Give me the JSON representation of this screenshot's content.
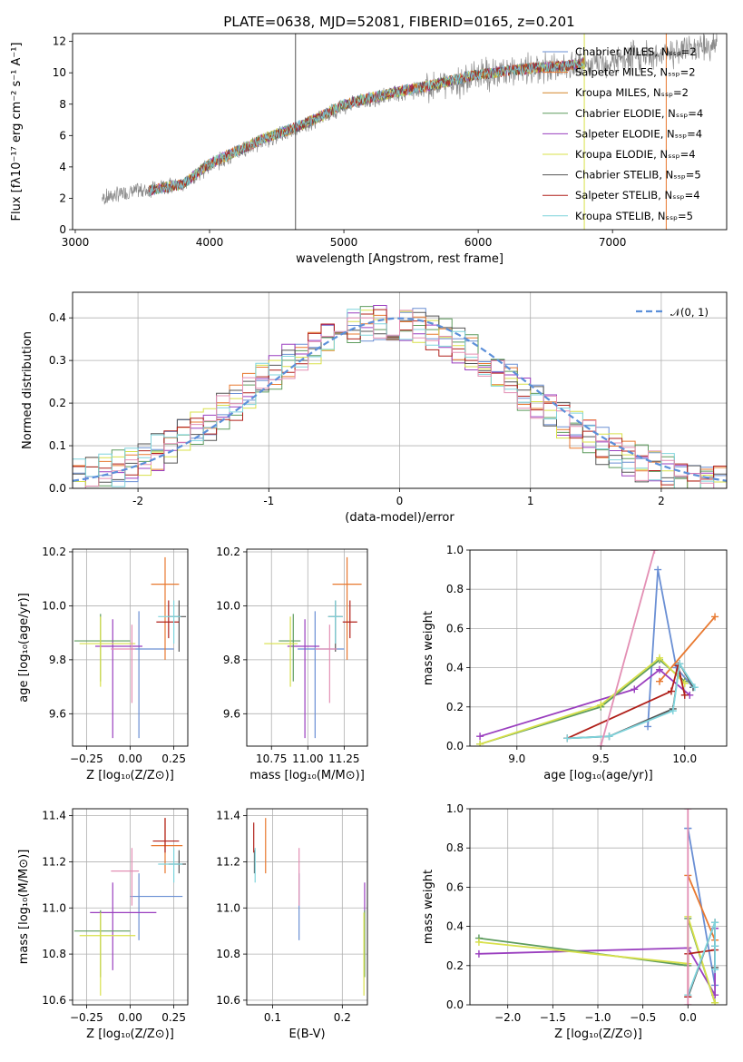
{
  "title": "PLATE=0638, MJD=52081, FIBERID=0165, z=0.201",
  "chart_data": [
    {
      "id": "spectrum",
      "type": "line",
      "xlabel": "wavelength [Angstrom, rest frame]",
      "ylabel": "Flux [fλ10⁻¹⁷ erg cm⁻² s⁻¹ A⁻¹]",
      "xlim": [
        2980,
        7850
      ],
      "ylim": [
        0,
        12.5
      ],
      "xticks": [
        3000,
        4000,
        5000,
        6000,
        7000
      ],
      "yticks": [
        0,
        2,
        4,
        6,
        8,
        10,
        12
      ],
      "legend_position": "top-right",
      "legend": [
        {
          "name": "Chabrier MILES, Nₛₛₚ=2",
          "color": "#6a8fd4"
        },
        {
          "name": "Salpeter MILES, Nₛₛₚ=2",
          "color": "#e8782f"
        },
        {
          "name": "Kroupa MILES, Nₛₛₚ=2",
          "color": "#d4862a"
        },
        {
          "name": "Chabrier ELODIE, Nₛₛₚ=4",
          "color": "#5e9c5e"
        },
        {
          "name": "Salpeter ELODIE, Nₛₛₚ=4",
          "color": "#9a3fbf"
        },
        {
          "name": "Kroupa ELODIE, Nₛₛₚ=4",
          "color": "#d8e04a"
        },
        {
          "name": "Chabrier STELIB, Nₛₛₚ=5",
          "color": "#555555"
        },
        {
          "name": "Salpeter STELIB, Nₛₛₚ=4",
          "color": "#b0201a"
        },
        {
          "name": "Kroupa STELIB, Nₛₛₚ=5",
          "color": "#7fd4dc"
        }
      ],
      "observed": {
        "x": [
          3200,
          3400,
          3600,
          3800,
          4000,
          4200,
          4400,
          4600,
          4800,
          5000,
          5200,
          5400,
          5600,
          5800,
          6000,
          6200,
          6400,
          6600,
          6800,
          7000,
          7200,
          7400,
          7600,
          7800
        ],
        "y": [
          2.0,
          2.4,
          2.6,
          2.9,
          4.1,
          4.9,
          5.7,
          6.3,
          7.0,
          7.9,
          8.3,
          8.7,
          9.0,
          9.4,
          9.8,
          10.0,
          10.2,
          10.3,
          10.5,
          10.7,
          11.0,
          11.3,
          11.6,
          11.8
        ]
      },
      "model": {
        "x": [
          3550,
          3800,
          4000,
          4200,
          4400,
          4600,
          4800,
          5000,
          5200,
          5400,
          5600,
          5800,
          6000,
          6200,
          6400,
          6600,
          6800
        ],
        "y": [
          2.5,
          2.9,
          4.2,
          5.0,
          5.8,
          6.4,
          7.1,
          8.0,
          8.4,
          8.8,
          9.1,
          9.5,
          9.9,
          10.1,
          10.3,
          10.4,
          10.6
        ]
      }
    },
    {
      "id": "residuals",
      "type": "line",
      "xlabel": "(data-model)/error",
      "ylabel": "Normed distribution",
      "xlim": [
        -2.5,
        2.5
      ],
      "ylim": [
        0,
        0.46
      ],
      "xticks": [
        -2,
        -1,
        0,
        1,
        2
      ],
      "yticks": [
        0.0,
        0.1,
        0.2,
        0.3,
        0.4
      ],
      "legend_position": "top-right",
      "gaussian_label": "𝒩(0, 1)",
      "gaussian_color": "#5b8fd9",
      "step_colors": [
        "#6a8fd4",
        "#e8782f",
        "#5e9c5e",
        "#9a3fbf",
        "#d8e04a",
        "#555555",
        "#b0201a",
        "#7fd4dc",
        "#e38fb4"
      ]
    },
    {
      "id": "z-age",
      "type": "scatter",
      "xlabel": "Z [log₁₀(Z/Z⊙)]",
      "ylabel": "age  [log₁₀(age/yr)]",
      "xlim": [
        -0.33,
        0.33
      ],
      "ylim": [
        9.48,
        10.21
      ],
      "xticks": [
        -0.25,
        0.0,
        0.25
      ],
      "xtick_labels": [
        "−0.25",
        "0.00",
        "0.25"
      ],
      "yticks": [
        9.6,
        9.8,
        10.0,
        10.2
      ],
      "points": [
        {
          "color": "#6a8fd4",
          "x": 0.05,
          "xerr": [
            0.05,
            0.2
          ],
          "y": 9.84,
          "yerr": [
            0.33,
            0.14
          ]
        },
        {
          "color": "#e8782f",
          "x": 0.2,
          "xerr": [
            0.08,
            0.08
          ],
          "y": 10.08,
          "yerr": [
            0.28,
            0.1
          ]
        },
        {
          "color": "#9a3fbf",
          "x": -0.1,
          "xerr": [
            0.1,
            0.17
          ],
          "y": 9.85,
          "yerr": [
            0.34,
            0.1
          ]
        },
        {
          "color": "#5e9c5e",
          "x": -0.17,
          "xerr": [
            0.15,
            0.17
          ],
          "y": 9.87,
          "yerr": [
            0.15,
            0.1
          ]
        },
        {
          "color": "#d8e04a",
          "x": -0.17,
          "xerr": [
            0.12,
            0.2
          ],
          "y": 9.86,
          "yerr": [
            0.16,
            0.1
          ]
        },
        {
          "color": "#555555",
          "x": 0.28,
          "xerr": [
            0.06,
            0.04
          ],
          "y": 9.96,
          "yerr": [
            0.13,
            0.06
          ]
        },
        {
          "color": "#b0201a",
          "x": 0.22,
          "xerr": [
            0.07,
            0.06
          ],
          "y": 9.94,
          "yerr": [
            0.06,
            0.08
          ]
        },
        {
          "color": "#7fd4dc",
          "x": 0.25,
          "xerr": [
            0.09,
            0.04
          ],
          "y": 9.96,
          "yerr": [
            0.1,
            0.06
          ]
        },
        {
          "color": "#e38fb4",
          "x": 0.01,
          "xerr": [
            0.12,
            0.02
          ],
          "y": 9.84,
          "yerr": [
            0.2,
            0.09
          ]
        }
      ]
    },
    {
      "id": "mass-age",
      "type": "scatter",
      "xlabel": "mass [log₁₀(M/M⊙)]",
      "ylabel": "",
      "xlim": [
        10.58,
        11.41
      ],
      "ylim": [
        9.48,
        10.21
      ],
      "xticks": [
        10.75,
        11.0,
        11.25
      ],
      "xtick_labels": [
        "10.75",
        "11.00",
        "11.25"
      ],
      "yticks": [
        9.6,
        9.8,
        10.0,
        10.2
      ],
      "points": [
        {
          "color": "#6a8fd4",
          "x": 11.05,
          "xerr": [
            0.12,
            0.2
          ],
          "y": 9.84,
          "yerr": [
            0.33,
            0.14
          ]
        },
        {
          "color": "#e8782f",
          "x": 11.27,
          "xerr": [
            0.1,
            0.1
          ],
          "y": 10.08,
          "yerr": [
            0.28,
            0.1
          ]
        },
        {
          "color": "#9a3fbf",
          "x": 10.98,
          "xerr": [
            0.12,
            0.1
          ],
          "y": 9.85,
          "yerr": [
            0.34,
            0.1
          ]
        },
        {
          "color": "#5e9c5e",
          "x": 10.9,
          "xerr": [
            0.1,
            0.05
          ],
          "y": 9.87,
          "yerr": [
            0.15,
            0.1
          ]
        },
        {
          "color": "#d8e04a",
          "x": 10.88,
          "xerr": [
            0.18,
            0.05
          ],
          "y": 9.86,
          "yerr": [
            0.16,
            0.1
          ]
        },
        {
          "color": "#555555",
          "x": 11.19,
          "xerr": [
            0.05,
            0.05
          ],
          "y": 9.96,
          "yerr": [
            0.13,
            0.06
          ]
        },
        {
          "color": "#b0201a",
          "x": 11.29,
          "xerr": [
            0.05,
            0.05
          ],
          "y": 9.94,
          "yerr": [
            0.06,
            0.08
          ]
        },
        {
          "color": "#7fd4dc",
          "x": 11.19,
          "xerr": [
            0.05,
            0.05
          ],
          "y": 9.96,
          "yerr": [
            0.1,
            0.06
          ]
        },
        {
          "color": "#e38fb4",
          "x": 11.15,
          "xerr": [
            0.1,
            0.05
          ],
          "y": 9.84,
          "yerr": [
            0.2,
            0.09
          ]
        }
      ]
    },
    {
      "id": "age-weight",
      "type": "line",
      "xlabel": "age  [log₁₀(age/yr)]",
      "ylabel": "mass weight",
      "xlim": [
        8.72,
        10.25
      ],
      "ylim": [
        0,
        1.0
      ],
      "xticks": [
        9.0,
        9.5,
        10.0
      ],
      "xtick_labels": [
        "9.0",
        "9.5",
        "10.0"
      ],
      "yticks": [
        0.0,
        0.2,
        0.4,
        0.6,
        0.8,
        1.0
      ],
      "series": [
        {
          "color": "#6a8fd4",
          "x": [
            9.78,
            9.84,
            9.95,
            10.05
          ],
          "y": [
            0.1,
            0.9,
            0.4,
            0.3
          ]
        },
        {
          "color": "#e8782f",
          "x": [
            9.85,
            10.18
          ],
          "y": [
            0.33,
            0.66
          ]
        },
        {
          "color": "#9a3fbf",
          "x": [
            8.78,
            9.7,
            9.85,
            10.03
          ],
          "y": [
            0.05,
            0.29,
            0.39,
            0.26
          ]
        },
        {
          "color": "#5e9c5e",
          "x": [
            8.78,
            9.5,
            9.85,
            10.0
          ],
          "y": [
            0.01,
            0.2,
            0.44,
            0.33
          ]
        },
        {
          "color": "#d8e04a",
          "x": [
            8.78,
            9.5,
            9.85,
            10.0
          ],
          "y": [
            0.01,
            0.21,
            0.45,
            0.32
          ]
        },
        {
          "color": "#555555",
          "x": [
            9.3,
            9.55,
            9.93,
            9.97,
            10.05
          ],
          "y": [
            0.04,
            0.05,
            0.19,
            0.42,
            0.3
          ]
        },
        {
          "color": "#b0201a",
          "x": [
            9.3,
            9.92,
            9.96,
            10.0
          ],
          "y": [
            0.04,
            0.28,
            0.41,
            0.26
          ]
        },
        {
          "color": "#7fd4dc",
          "x": [
            9.3,
            9.55,
            9.93,
            9.97,
            10.06
          ],
          "y": [
            0.04,
            0.05,
            0.18,
            0.42,
            0.3
          ]
        },
        {
          "color": "#e38fb4",
          "x": [
            9.5,
            9.82
          ],
          "y": [
            0.0,
            1.0
          ]
        }
      ]
    },
    {
      "id": "z-mass",
      "type": "scatter",
      "xlabel": "Z [log₁₀(Z/Z⊙)]",
      "ylabel": "mass [log₁₀(M/M⊙)]",
      "xlim": [
        -0.33,
        0.33
      ],
      "ylim": [
        10.58,
        11.43
      ],
      "xticks": [
        -0.25,
        0.0,
        0.25
      ],
      "xtick_labels": [
        "−0.25",
        "0.00",
        "0.25"
      ],
      "yticks": [
        10.6,
        10.8,
        11.0,
        11.2,
        11.4
      ],
      "points": [
        {
          "color": "#6a8fd4",
          "x": 0.05,
          "xerr": [
            0.05,
            0.25
          ],
          "y": 11.05,
          "yerr": [
            0.19,
            0.1
          ]
        },
        {
          "color": "#e8782f",
          "x": 0.2,
          "xerr": [
            0.08,
            0.1
          ],
          "y": 11.27,
          "yerr": [
            0.12,
            0.12
          ]
        },
        {
          "color": "#9a3fbf",
          "x": -0.1,
          "xerr": [
            0.13,
            0.25
          ],
          "y": 10.98,
          "yerr": [
            0.25,
            0.13
          ]
        },
        {
          "color": "#5e9c5e",
          "x": -0.17,
          "xerr": [
            0.15,
            0.17
          ],
          "y": 10.9,
          "yerr": [
            0.2,
            0.09
          ]
        },
        {
          "color": "#d8e04a",
          "x": -0.17,
          "xerr": [
            0.12,
            0.2
          ],
          "y": 10.88,
          "yerr": [
            0.26,
            0.1
          ]
        },
        {
          "color": "#555555",
          "x": 0.28,
          "xerr": [
            0.06,
            0.04
          ],
          "y": 11.19,
          "yerr": [
            0.04,
            0.06
          ]
        },
        {
          "color": "#b0201a",
          "x": 0.2,
          "xerr": [
            0.07,
            0.08
          ],
          "y": 11.29,
          "yerr": [
            0.05,
            0.1
          ]
        },
        {
          "color": "#7fd4dc",
          "x": 0.25,
          "xerr": [
            0.09,
            0.05
          ],
          "y": 11.19,
          "yerr": [
            0.08,
            0.07
          ]
        },
        {
          "color": "#e38fb4",
          "x": 0.01,
          "xerr": [
            0.12,
            0.04
          ],
          "y": 11.16,
          "yerr": [
            0.15,
            0.1
          ]
        }
      ]
    },
    {
      "id": "ebv-mass",
      "type": "scatter",
      "xlabel": "E(B-V)",
      "ylabel": "",
      "xlim": [
        0.063,
        0.236
      ],
      "ylim": [
        10.58,
        11.43
      ],
      "xticks": [
        0.1,
        0.2
      ],
      "xtick_labels": [
        "0.1",
        "0.2"
      ],
      "yticks": [
        10.6,
        10.8,
        11.0,
        11.2,
        11.4
      ],
      "points": [
        {
          "color": "#6a8fd4",
          "x": 0.138,
          "y": 11.05,
          "yerr": [
            0.19,
            0.1
          ]
        },
        {
          "color": "#e8782f",
          "x": 0.09,
          "y": 11.27,
          "yerr": [
            0.12,
            0.12
          ]
        },
        {
          "color": "#9a3fbf",
          "x": 0.232,
          "y": 10.98,
          "yerr": [
            0.25,
            0.13
          ]
        },
        {
          "color": "#5e9c5e",
          "x": 0.232,
          "y": 10.9,
          "yerr": [
            0.2,
            0.09
          ]
        },
        {
          "color": "#d8e04a",
          "x": 0.231,
          "y": 10.88,
          "yerr": [
            0.26,
            0.1
          ]
        },
        {
          "color": "#555555",
          "x": 0.074,
          "y": 11.19,
          "yerr": [
            0.04,
            0.06
          ]
        },
        {
          "color": "#b0201a",
          "x": 0.073,
          "y": 11.29,
          "yerr": [
            0.05,
            0.08
          ]
        },
        {
          "color": "#7fd4dc",
          "x": 0.075,
          "y": 11.19,
          "yerr": [
            0.08,
            0.07
          ]
        },
        {
          "color": "#e38fb4",
          "x": 0.138,
          "y": 11.16,
          "yerr": [
            0.15,
            0.1
          ]
        }
      ]
    },
    {
      "id": "z-weight",
      "type": "line",
      "xlabel": "Z [log₁₀(Z/Z⊙)]",
      "ylabel": "mass weight",
      "xlim": [
        -2.42,
        0.43
      ],
      "ylim": [
        0,
        1.0
      ],
      "xticks": [
        -2.0,
        -1.5,
        -1.0,
        -0.5,
        0.0
      ],
      "xtick_labels": [
        "−2.0",
        "−1.5",
        "−1.0",
        "−0.5",
        "0.0"
      ],
      "yticks": [
        0.0,
        0.2,
        0.4,
        0.6,
        0.8,
        1.0
      ],
      "series": [
        {
          "color": "#6a8fd4",
          "x": [
            0.0,
            0.0,
            0.3,
            0.3
          ],
          "y": [
            0.9,
            0.9,
            0.1,
            0.3
          ]
        },
        {
          "color": "#e8782f",
          "x": [
            0.0,
            0.3
          ],
          "y": [
            0.66,
            0.33
          ]
        },
        {
          "color": "#9a3fbf",
          "x": [
            -2.32,
            0.0,
            0.3,
            0.3
          ],
          "y": [
            0.26,
            0.29,
            0.05,
            0.39
          ]
        },
        {
          "color": "#5e9c5e",
          "x": [
            -2.32,
            0.0,
            0.0,
            0.3
          ],
          "y": [
            0.34,
            0.2,
            0.44,
            0.01
          ]
        },
        {
          "color": "#d8e04a",
          "x": [
            -2.32,
            0.0,
            0.0,
            0.3
          ],
          "y": [
            0.32,
            0.21,
            0.45,
            0.01
          ]
        },
        {
          "color": "#555555",
          "x": [
            0.0,
            0.3,
            0.3,
            0.3
          ],
          "y": [
            0.04,
            0.42,
            0.3,
            0.19
          ]
        },
        {
          "color": "#b0201a",
          "x": [
            0.0,
            0.0,
            0.3
          ],
          "y": [
            0.04,
            0.26,
            0.28
          ]
        },
        {
          "color": "#7fd4dc",
          "x": [
            0.0,
            0.3,
            0.3,
            0.3
          ],
          "y": [
            0.05,
            0.42,
            0.3,
            0.18
          ]
        },
        {
          "color": "#e38fb4",
          "x": [
            0.0,
            0.0
          ],
          "y": [
            0.0,
            1.0
          ]
        }
      ]
    }
  ]
}
